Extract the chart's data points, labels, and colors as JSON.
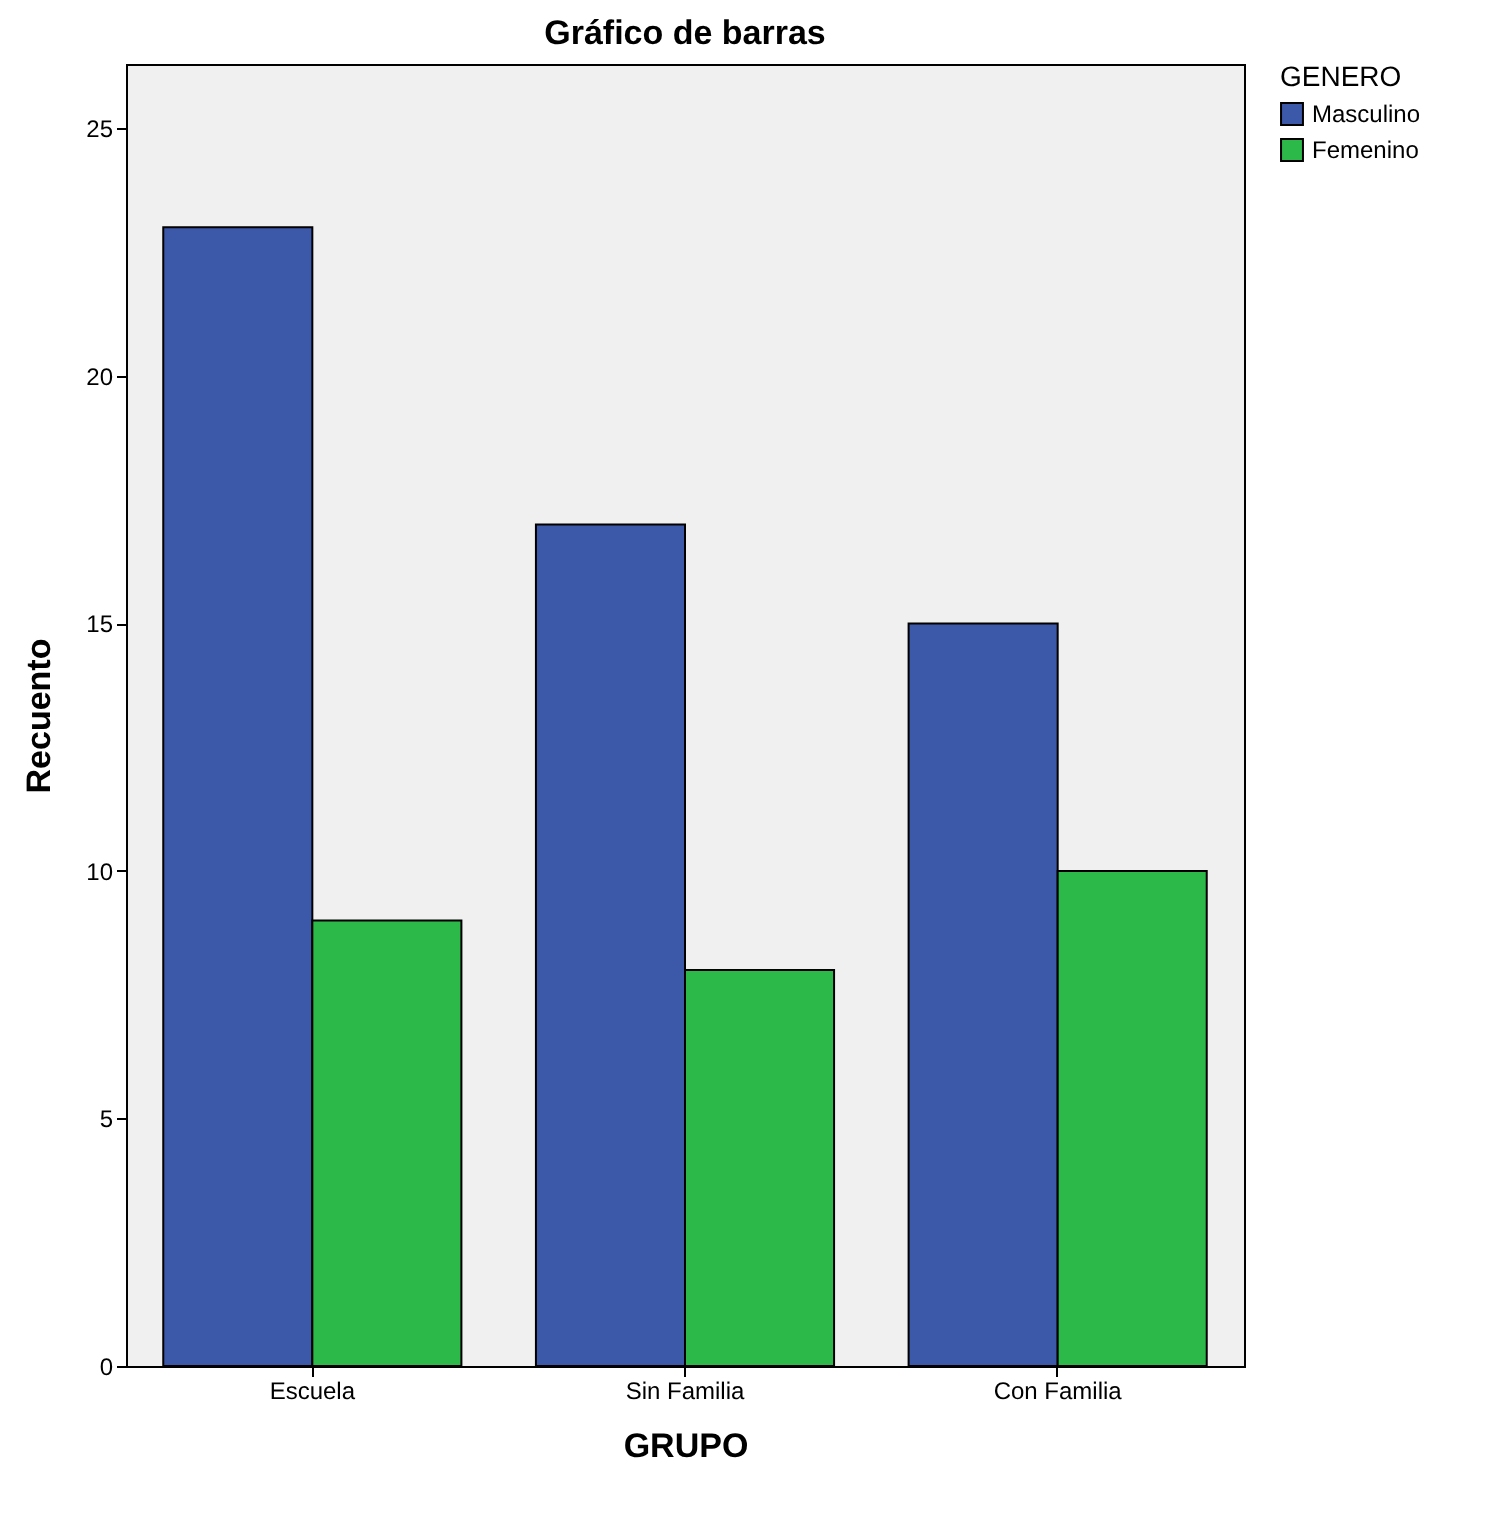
{
  "chart_data": {
    "type": "bar",
    "title": "Gráfico de barras",
    "xlabel": "GRUPO",
    "ylabel": "Recuento",
    "legend_title": "GENERO",
    "categories": [
      "Escuela",
      "Sin Familia",
      "Con Familia"
    ],
    "series": [
      {
        "name": "Masculino",
        "color": "#3c58a8",
        "values": [
          23,
          17,
          15
        ]
      },
      {
        "name": "Femenino",
        "color": "#2db84a",
        "values": [
          9,
          8,
          10
        ]
      }
    ],
    "ylim": [
      0,
      26.3
    ],
    "yticks": [
      0,
      5,
      10,
      15,
      20,
      25
    ],
    "grid": false,
    "legend": "top right"
  }
}
